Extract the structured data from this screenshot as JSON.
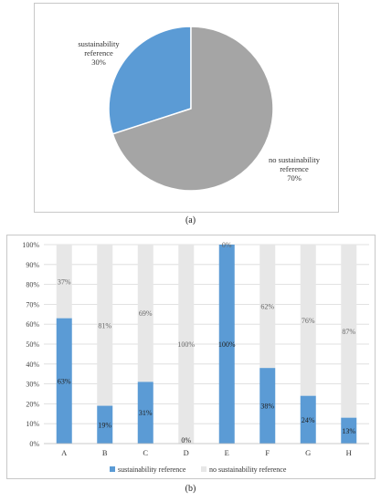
{
  "captions": {
    "a": "(a)",
    "b": "(b)"
  },
  "colors": {
    "sustainability": "#5b9bd5",
    "no_sustainability": "#a5a5a5",
    "no_sustainability_light": "#e7e7e7",
    "grid": "#d9d9d9"
  },
  "chart_data": [
    {
      "type": "pie",
      "slices": [
        {
          "name": "sustainability reference",
          "value": 30,
          "label": "30%"
        },
        {
          "name": "no sustainability reference",
          "value": 70,
          "label": "70%"
        }
      ]
    },
    {
      "type": "bar",
      "stacked": true,
      "categories": [
        "A",
        "B",
        "C",
        "D",
        "E",
        "F",
        "G",
        "H"
      ],
      "series": [
        {
          "name": "sustainability reference",
          "values": [
            63,
            19,
            31,
            0,
            100,
            38,
            24,
            13
          ]
        },
        {
          "name": "no sustainability reference",
          "values": [
            37,
            81,
            69,
            100,
            0,
            62,
            76,
            87
          ]
        }
      ],
      "y_ticks": [
        "0%",
        "10%",
        "20%",
        "30%",
        "40%",
        "50%",
        "60%",
        "70%",
        "80%",
        "90%",
        "100%"
      ],
      "ylim": [
        0,
        100
      ],
      "legend": "bottom"
    }
  ]
}
